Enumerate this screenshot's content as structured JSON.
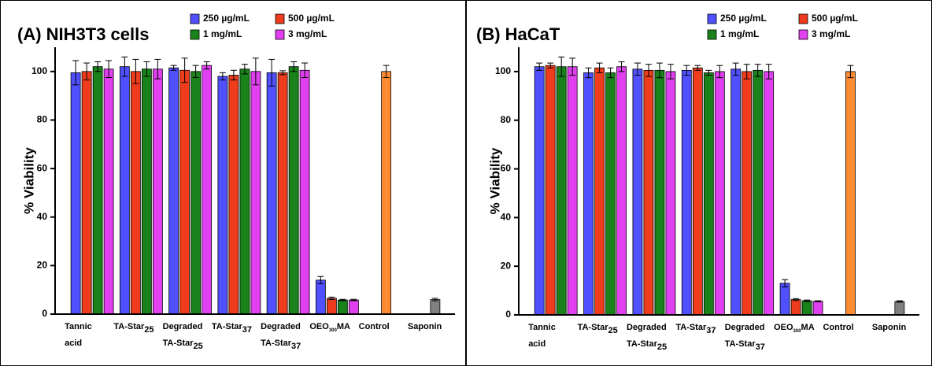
{
  "chart_data": [
    {
      "type": "bar",
      "title": "(A) NIH3T3 cells",
      "y_label": "% Viability",
      "categories": [
        [
          [
            "Tannic"
          ],
          [
            "acid"
          ]
        ],
        [
          [
            "TA-Star",
            "25"
          ]
        ],
        [
          [
            "Degraded"
          ],
          [
            "TA-Star",
            "25"
          ]
        ],
        [
          [
            "TA-Star",
            "37"
          ]
        ],
        [
          [
            "Degraded"
          ],
          [
            "TA-Star",
            "37"
          ]
        ],
        [
          [
            "OEO",
            "300",
            "MA"
          ]
        ],
        [
          [
            "Control"
          ]
        ],
        [
          [
            "Saponin"
          ]
        ]
      ],
      "series": [
        {
          "name": "250 µg/mL",
          "color": "#5050ff",
          "values": [
            99.5,
            102,
            101.5,
            98,
            99.5,
            14,
            null,
            null
          ],
          "errors": [
            5,
            4,
            1,
            1.5,
            5.5,
            1.5,
            null,
            null
          ]
        },
        {
          "name": "500 µg/mL",
          "color": "#ee3c1c",
          "values": [
            100,
            100,
            100.5,
            98.5,
            99.5,
            6.5,
            null,
            null
          ],
          "errors": [
            3.5,
            5,
            5,
            2,
            0.8,
            0.5,
            null,
            null
          ]
        },
        {
          "name": "1 mg/mL",
          "color": "#1a821a",
          "values": [
            102,
            101,
            100,
            101,
            102,
            5.8,
            null,
            null
          ],
          "errors": [
            2,
            3,
            2.5,
            2,
            2,
            0.3,
            null,
            null
          ]
        },
        {
          "name": "3 mg/mL",
          "color": "#e040f0",
          "values": [
            101,
            101,
            102.5,
            100,
            100.5,
            5.8,
            null,
            null
          ],
          "errors": [
            3.5,
            4,
            1.5,
            5.5,
            3,
            0.3,
            null,
            null
          ]
        }
      ],
      "single": {
        "values": [
          null,
          null,
          null,
          null,
          null,
          null,
          100,
          6
        ],
        "errors": [
          null,
          null,
          null,
          null,
          null,
          null,
          2.5,
          0.5
        ],
        "colors": [
          null,
          null,
          null,
          null,
          null,
          null,
          "#ff8c33",
          "#808080"
        ]
      },
      "ylim": [
        0,
        110
      ],
      "yticks": [
        0,
        20,
        40,
        60,
        80,
        100
      ]
    },
    {
      "type": "bar",
      "title": "(B) HaCaT",
      "y_label": "% Viability",
      "categories": [
        [
          [
            "Tannic"
          ],
          [
            "acid"
          ]
        ],
        [
          [
            "TA-Star",
            "25"
          ]
        ],
        [
          [
            "Degraded"
          ],
          [
            "TA-Star",
            "25"
          ]
        ],
        [
          [
            "TA-Star",
            "37"
          ]
        ],
        [
          [
            "Degraded"
          ],
          [
            "TA-Star",
            "37"
          ]
        ],
        [
          [
            "OEO",
            "300",
            "MA"
          ]
        ],
        [
          [
            "Control"
          ]
        ],
        [
          [
            "Saponin"
          ]
        ]
      ],
      "series": [
        {
          "name": "250 µg/mL",
          "color": "#5050ff",
          "values": [
            102,
            99.5,
            101,
            100.5,
            101,
            13,
            null,
            null
          ],
          "errors": [
            1.5,
            2,
            2.5,
            2,
            2.5,
            1.5,
            null,
            null
          ]
        },
        {
          "name": "500 µg/mL",
          "color": "#ee3c1c",
          "values": [
            102.5,
            101.5,
            100.5,
            101.5,
            100,
            6.3,
            null,
            null
          ],
          "errors": [
            1,
            2,
            2.5,
            1,
            3,
            0.4,
            null,
            null
          ]
        },
        {
          "name": "1 mg/mL",
          "color": "#1a821a",
          "values": [
            102,
            99.5,
            100.5,
            99.5,
            100.5,
            5.8,
            null,
            null
          ],
          "errors": [
            4,
            2,
            3,
            1,
            2.5,
            0.3,
            null,
            null
          ]
        },
        {
          "name": "3 mg/mL",
          "color": "#e040f0",
          "values": [
            102,
            102,
            100,
            100,
            100,
            5.6,
            null,
            null
          ],
          "errors": [
            3.5,
            2,
            3,
            2.5,
            3,
            0.2,
            null,
            null
          ]
        }
      ],
      "single": {
        "values": [
          null,
          null,
          null,
          null,
          null,
          null,
          100,
          5.5
        ],
        "errors": [
          null,
          null,
          null,
          null,
          null,
          null,
          2.5,
          0.3
        ],
        "colors": [
          null,
          null,
          null,
          null,
          null,
          null,
          "#ff8c33",
          "#808080"
        ]
      },
      "ylim": [
        0,
        110
      ],
      "yticks": [
        0,
        20,
        40,
        60,
        80,
        100
      ]
    }
  ]
}
